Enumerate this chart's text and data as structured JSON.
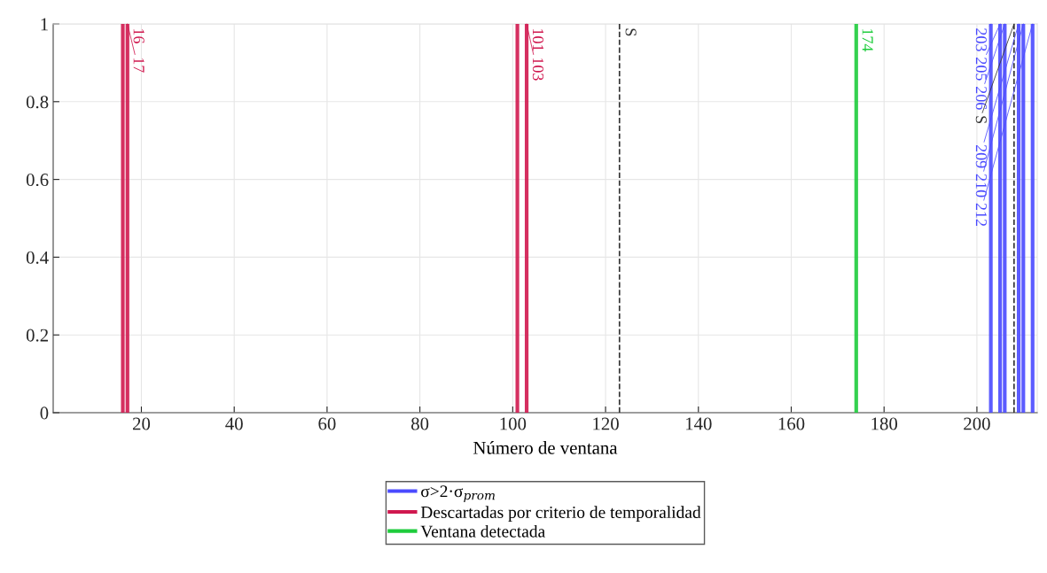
{
  "chart_data": {
    "type": "line",
    "xlabel": "Número de ventana",
    "series": [
      {
        "name": "σ>2·σ$_{prom}$",
        "color": "#4a4aff",
        "x": [
          203,
          203,
          null,
          205,
          205,
          null,
          206,
          206,
          null,
          209,
          209,
          null,
          210,
          210,
          null,
          212,
          212
        ],
        "values": [
          0,
          1,
          null,
          0,
          1,
          null,
          0,
          1,
          null,
          0,
          1,
          null,
          0,
          1,
          null,
          0,
          1
        ]
      },
      {
        "name": "Descartadas por criterio de temporalidad",
        "color": "#d0184f",
        "x": [
          16,
          16,
          null,
          17,
          17,
          null,
          101,
          101,
          null,
          103,
          103
        ],
        "values": [
          0,
          1,
          null,
          0,
          1,
          null,
          0,
          1,
          null,
          0,
          1
        ]
      },
      {
        "name": "Ventana detectada",
        "color": "#1ecc3c",
        "x": [
          174,
          174
        ],
        "values": [
          0,
          1
        ]
      }
    ],
    "annotations": [
      {
        "text": "16",
        "x": 16,
        "y": 1
      },
      {
        "text": "17",
        "x": 17,
        "y": 1
      },
      {
        "text": "101",
        "x": 101,
        "y": 1
      },
      {
        "text": "103",
        "x": 103,
        "y": 1
      },
      {
        "text": "174",
        "x": 174,
        "y": 1
      },
      {
        "text": "203",
        "x": 203,
        "y": 1
      },
      {
        "text": "205",
        "x": 205,
        "y": 1
      },
      {
        "text": "206",
        "x": 206,
        "y": 1
      },
      {
        "text": "209",
        "x": 209,
        "y": 1
      },
      {
        "text": "210",
        "x": 210,
        "y": 1
      },
      {
        "text": "212",
        "x": 212,
        "y": 1
      }
    ],
    "ref_lines": [
      {
        "axis": "x",
        "value": 123,
        "label": "S",
        "color": "#333333",
        "line_style": "dashed"
      },
      {
        "axis": "x",
        "value": 208,
        "label": "S",
        "color": "#333333",
        "line_style": "dashed"
      }
    ],
    "xlim": [
      1,
      213
    ],
    "xticks": [
      20,
      40,
      60,
      80,
      100,
      120,
      140,
      160,
      180,
      200
    ],
    "ylim": [
      0,
      1
    ],
    "yticks": [
      0,
      0.2,
      0.4,
      0.6,
      0.8,
      1
    ],
    "grid": true,
    "legend": "bottom",
    "line_style": "solid",
    "marker": "none"
  }
}
